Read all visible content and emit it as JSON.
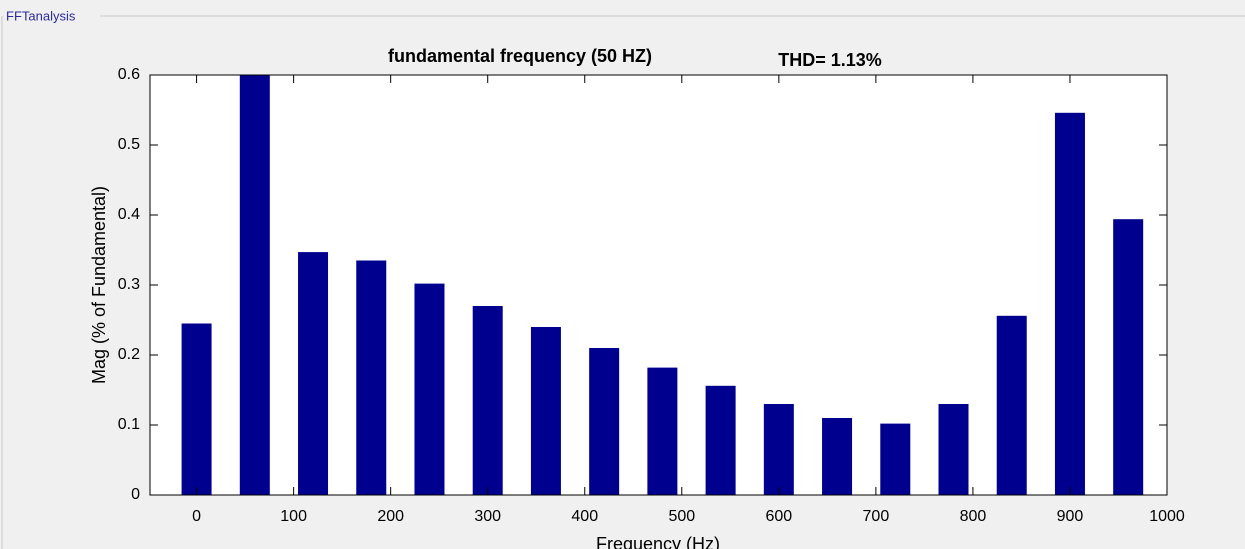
{
  "panel_title": "FFTanalysis",
  "chart_data": {
    "type": "bar",
    "title": "fundamental frequency (50 HZ)",
    "annotation": "THD= 1.13%",
    "x_label": "Frequency (Hz)",
    "y_label": "Mag (% of Fundamental)",
    "x": [
      0,
      60,
      120,
      180,
      240,
      300,
      360,
      420,
      480,
      540,
      600,
      660,
      720,
      780,
      840,
      900,
      960
    ],
    "values": [
      0.245,
      0.6,
      0.347,
      0.335,
      0.302,
      0.27,
      0.24,
      0.21,
      0.182,
      0.156,
      0.13,
      0.11,
      0.102,
      0.13,
      0.256,
      0.546,
      0.394
    ],
    "color": "#00008f",
    "xlim": [
      -48,
      1000
    ],
    "xticks": [
      0,
      100,
      200,
      300,
      400,
      500,
      600,
      700,
      800,
      900,
      1000
    ],
    "ylim": [
      0,
      0.6
    ],
    "yticks": [
      0,
      0.1,
      0.2,
      0.3,
      0.4,
      0.5,
      0.6
    ],
    "grid": false
  }
}
